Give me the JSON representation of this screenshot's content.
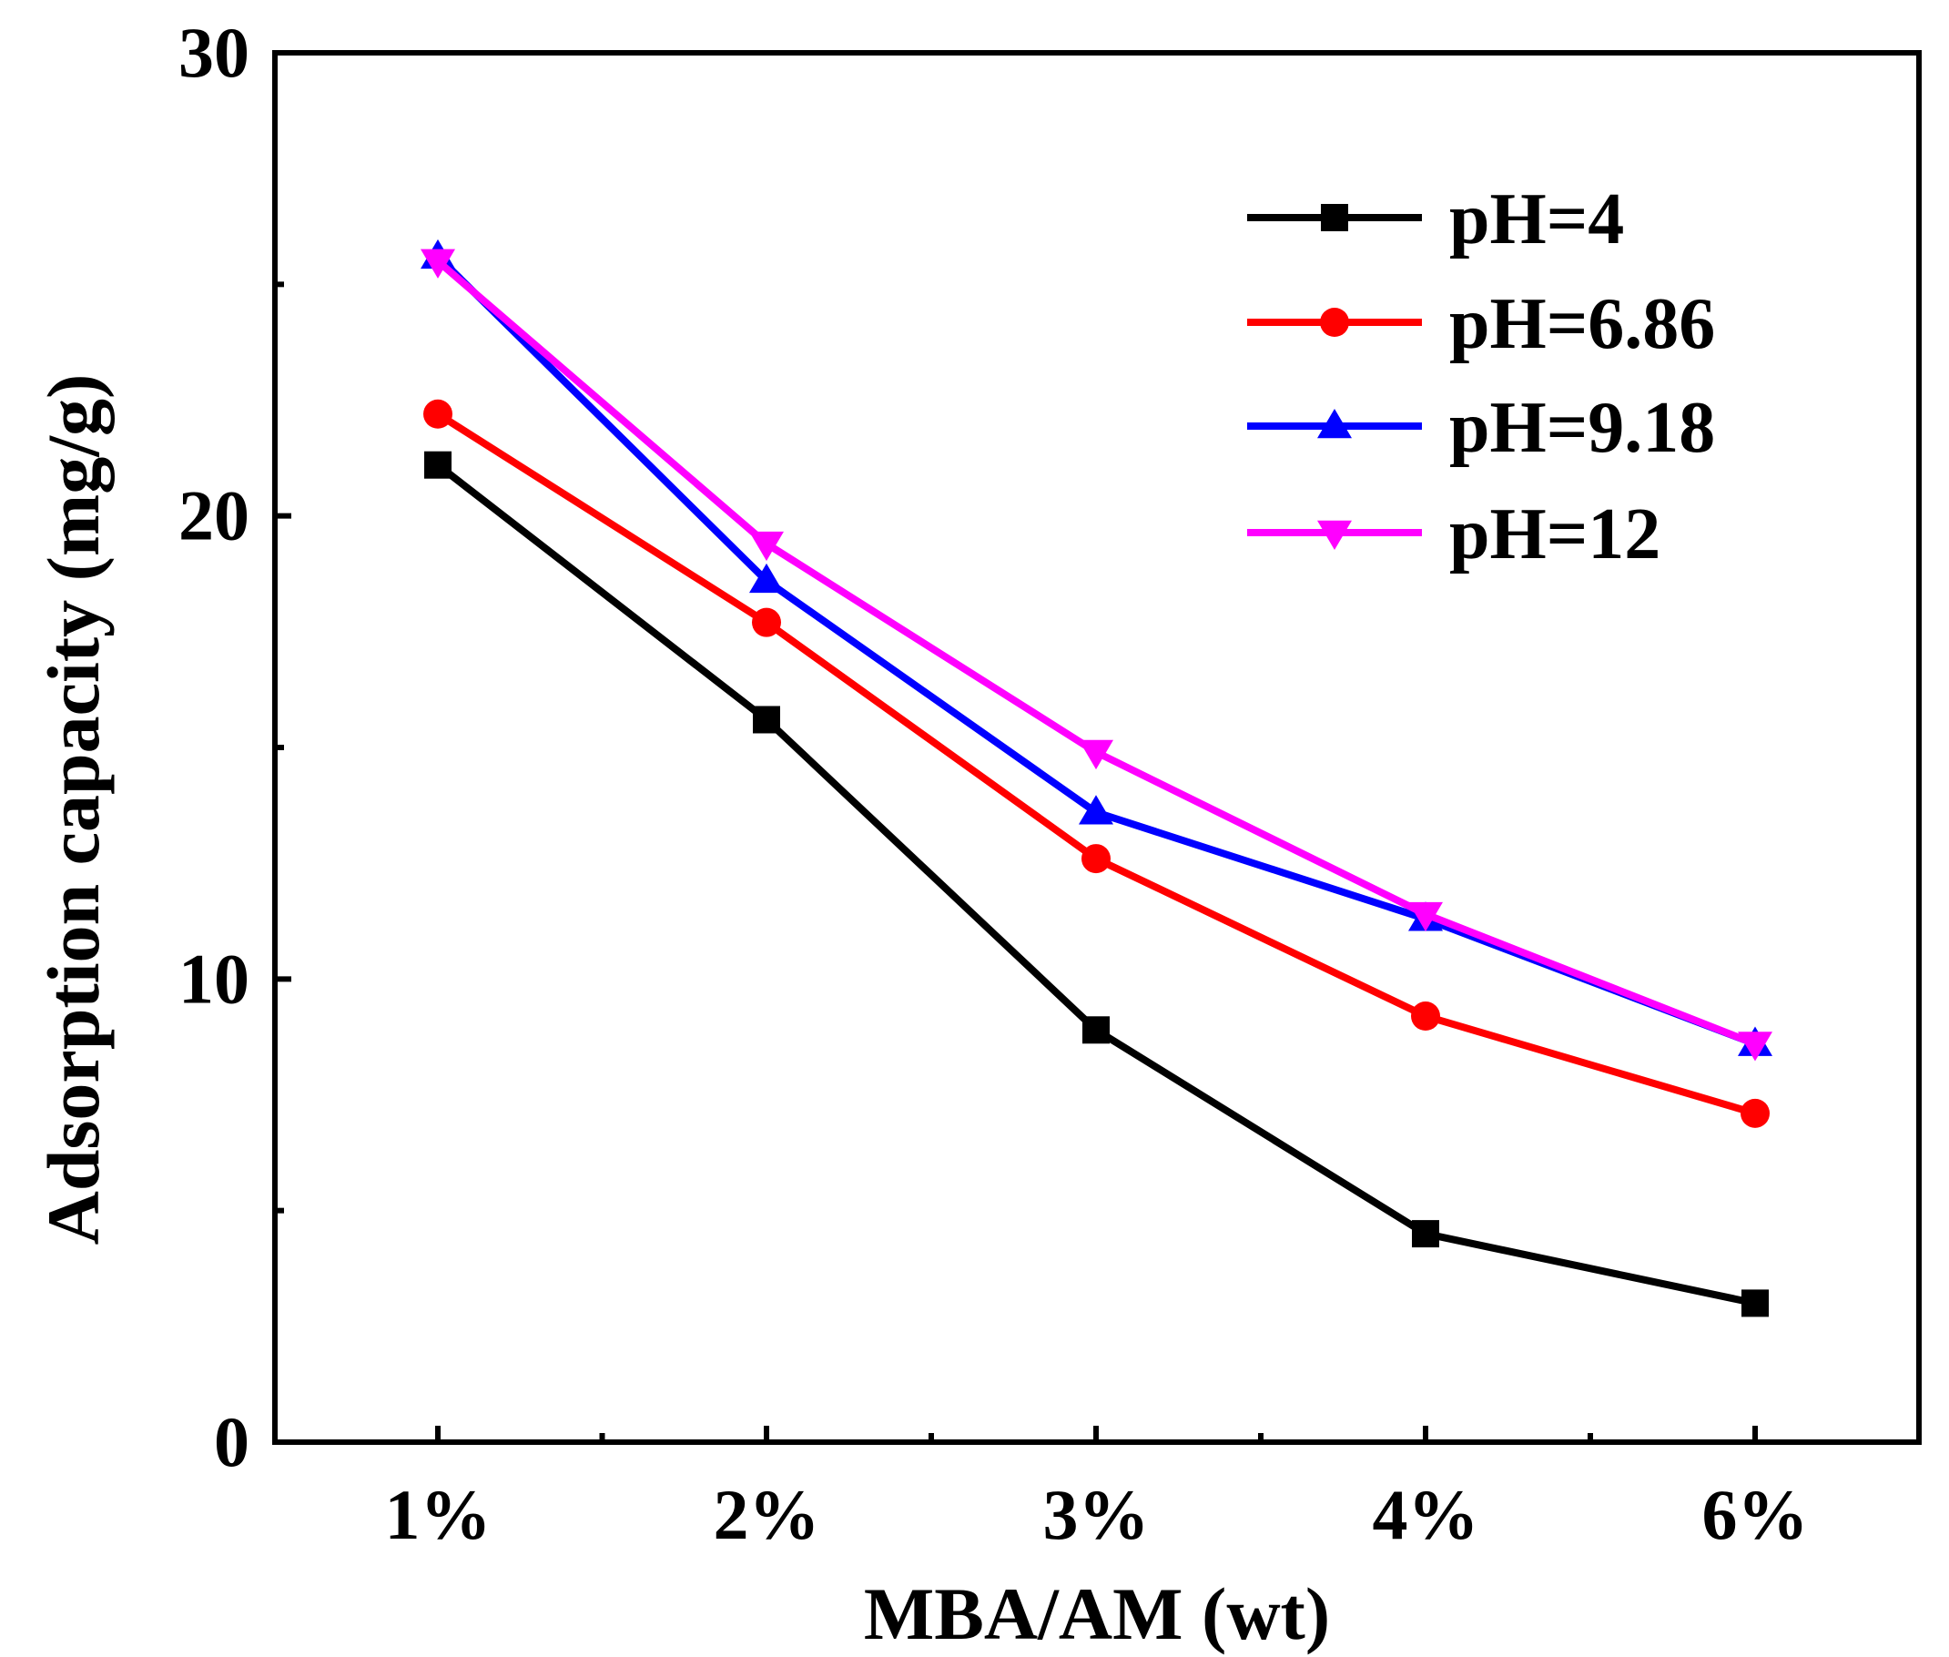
{
  "chart_data": {
    "type": "line",
    "xlabel": "MBA/AM (wt)",
    "ylabel": "Adsorption capacity (mg/g)",
    "categories": [
      "1%",
      "2%",
      "3%",
      "4%",
      "6%"
    ],
    "ylim": [
      0,
      30
    ],
    "yticks": [
      0,
      10,
      20,
      30
    ],
    "ylabels": [
      "0",
      "10",
      "20",
      "30"
    ],
    "grid": false,
    "legend_position": "top-right",
    "series": [
      {
        "name": "pH=4",
        "color": "#000000",
        "marker": "square",
        "values": [
          21.1,
          15.6,
          8.9,
          4.5,
          3.0
        ]
      },
      {
        "name": "pH=6.86",
        "color": "#ff0000",
        "marker": "circle",
        "values": [
          22.2,
          17.7,
          12.6,
          9.2,
          7.1
        ]
      },
      {
        "name": "pH=9.18",
        "color": "#0000ff",
        "marker": "triangle-up",
        "values": [
          25.6,
          18.6,
          13.6,
          11.3,
          8.6
        ]
      },
      {
        "name": "pH=12",
        "color": "#ff00ff",
        "marker": "triangle-down",
        "values": [
          25.5,
          19.4,
          14.9,
          11.4,
          8.6
        ]
      }
    ]
  }
}
